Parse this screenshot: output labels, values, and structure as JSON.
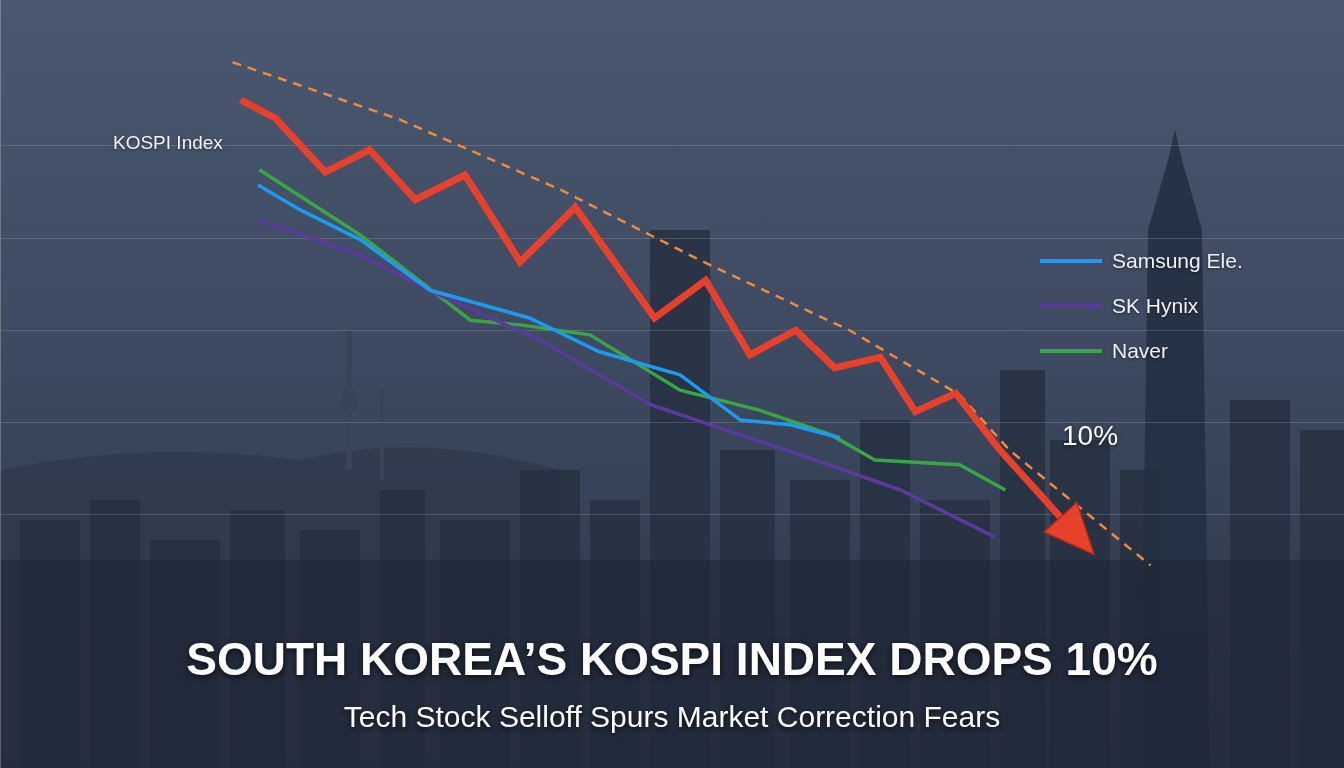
{
  "chart_data": {
    "type": "line",
    "title": "SOUTH KOREA’S KOSPI INDEX DROPS 10%",
    "subtitle": "Tech Stock Selloff Spurs Market Correction Fears",
    "annotations": [
      {
        "text": "10%"
      }
    ],
    "xlim": [
      0,
      100
    ],
    "ylim": [
      0,
      100
    ],
    "yticks": [
      33,
      45,
      57,
      69,
      81
    ],
    "grid": true,
    "tick_labels": false,
    "legend": "right",
    "series": [
      {
        "name": "KOSPI Index",
        "color": "#e8412b",
        "line_style": "solid",
        "marker": "arrow",
        "x": [
          17.9,
          20.5,
          24.2,
          27.5,
          30.9,
          34.6,
          38.7,
          42.8,
          48.7,
          52.5,
          55.8,
          59.2,
          62.1,
          65.5,
          68.1,
          71.1,
          74.4,
          81.1
        ],
        "values": [
          87.0,
          84.6,
          77.6,
          80.5,
          74.0,
          77.2,
          65.9,
          73.0,
          58.6,
          63.5,
          53.8,
          57.0,
          52.1,
          53.5,
          46.4,
          48.8,
          41.4,
          28.4
        ]
      },
      {
        "color": "#f08a3c",
        "line_style": "dashed",
        "x": [
          17.3,
          29.8,
          41.7,
          52.1,
          63.2,
          71.4,
          75.1,
          85.6
        ],
        "values": [
          91.9,
          84.4,
          75.3,
          66.1,
          57.0,
          48.6,
          41.4,
          26.4
        ]
      },
      {
        "name": "Samsung Ele.",
        "color": "#1e9bf0",
        "line_style": "solid",
        "x": [
          19.2,
          22.3,
          26.8,
          32.0,
          39.4,
          44.6,
          50.6,
          55.1,
          58.8,
          62.5
        ],
        "values": [
          75.9,
          72.7,
          68.8,
          62.2,
          58.6,
          54.2,
          51.2,
          45.3,
          44.7,
          43.0
        ]
      },
      {
        "name": "SK Hynix",
        "color": "#5b3a9e",
        "line_style": "solid",
        "x": [
          19.2,
          26.8,
          32.7,
          40.2,
          48.4,
          59.5,
          67.0,
          74.0
        ],
        "values": [
          71.4,
          66.8,
          61.6,
          55.7,
          47.3,
          40.8,
          36.2,
          30.1
        ]
      },
      {
        "name": "Naver",
        "color": "#3aa545",
        "line_style": "solid",
        "x": [
          19.3,
          26.8,
          35.0,
          38.7,
          43.9,
          50.6,
          56.5,
          61.8,
          65.1,
          71.4,
          74.8
        ],
        "values": [
          77.9,
          69.4,
          58.3,
          57.7,
          56.4,
          49.2,
          46.6,
          43.4,
          40.1,
          39.5,
          36.2
        ]
      }
    ]
  }
}
